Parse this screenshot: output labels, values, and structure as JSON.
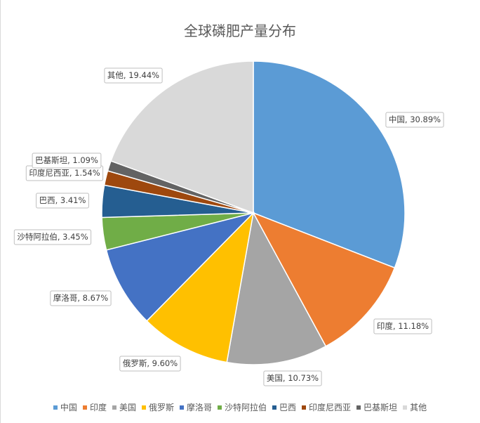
{
  "chart_data": {
    "type": "pie",
    "title": "全球磷肥产量分布",
    "legend_position": "bottom",
    "slices": [
      {
        "name": "中国",
        "value": 30.89,
        "label": "中国, 30.89%",
        "color": "#5b9bd5"
      },
      {
        "name": "印度",
        "value": 11.18,
        "label": "印度, 11.18%",
        "color": "#ed7d31"
      },
      {
        "name": "美国",
        "value": 10.73,
        "label": "美国, 10.73%",
        "color": "#a5a5a5"
      },
      {
        "name": "俄罗斯",
        "value": 9.6,
        "label": "俄罗斯, 9.60%",
        "color": "#ffc000"
      },
      {
        "name": "摩洛哥",
        "value": 8.67,
        "label": "摩洛哥, 8.67%",
        "color": "#4472c4"
      },
      {
        "name": "沙特阿拉伯",
        "value": 3.45,
        "label": "沙特阿拉伯, 3.45%",
        "color": "#70ad47"
      },
      {
        "name": "巴西",
        "value": 3.41,
        "label": "巴西, 3.41%",
        "color": "#255e91"
      },
      {
        "name": "印度尼西亚",
        "value": 1.54,
        "label": "印度尼西亚, 1.54%",
        "color": "#9e480e"
      },
      {
        "name": "巴基斯坦",
        "value": 1.09,
        "label": "巴基斯坦, 1.09%",
        "color": "#636363"
      },
      {
        "name": "其他",
        "value": 19.44,
        "label": "其他, 19.44%",
        "color": "#d9d9d9"
      }
    ]
  }
}
